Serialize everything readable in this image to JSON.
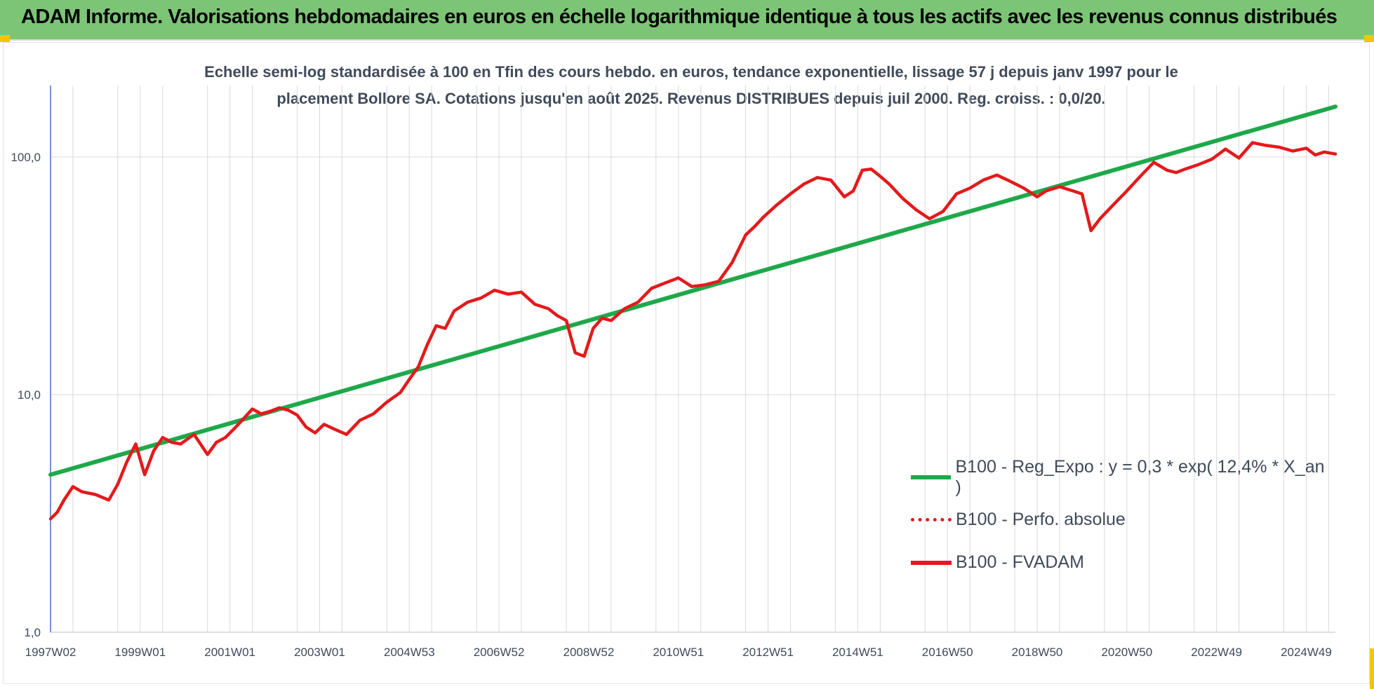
{
  "banner": {
    "title": "ADAM Informe. Valorisations hebdomadaires en euros en échelle logarithmique identique à tous les actifs avec les revenus connus distribués"
  },
  "colors": {
    "banner_bg": "#7cc576",
    "regression": "#1fa84a",
    "fvadam": "#e31a1c",
    "grid": "#d9d9d9",
    "text": "#404a5a",
    "corner": "#f5c400"
  },
  "chart_data": {
    "type": "line",
    "title_line1": "Echelle semi-log standardisée à 100 en Tfin des cours hebdo. en euros, tendance exponentielle, lissage 57 j depuis janv 1997 pour le",
    "title_line2": "placement Bollore SA. Cotations jusqu'en août 2025. Revenus DISTRIBUES depuis juil 2000. Reg. croiss. : 0,0/20.",
    "y_scale": "log",
    "ylim": [
      1,
      200
    ],
    "xlim": [
      1997.0,
      2025.65
    ],
    "grid": true,
    "legend_position": "right",
    "y_ticks": [
      {
        "value": 1,
        "label": "1,0"
      },
      {
        "value": 10,
        "label": "10,0"
      },
      {
        "value": 100,
        "label": "100,0"
      }
    ],
    "x_ticks": [
      {
        "value": 1997.0,
        "label": "1997W02"
      },
      {
        "value": 1999.0,
        "label": "1999W01"
      },
      {
        "value": 2001.0,
        "label": "2001W01"
      },
      {
        "value": 2003.0,
        "label": "2003W01"
      },
      {
        "value": 2005.0,
        "label": "2004W53"
      },
      {
        "value": 2007.0,
        "label": "2006W52"
      },
      {
        "value": 2009.0,
        "label": "2008W52"
      },
      {
        "value": 2011.0,
        "label": "2010W51"
      },
      {
        "value": 2013.0,
        "label": "2012W51"
      },
      {
        "value": 2015.0,
        "label": "2014W51"
      },
      {
        "value": 2017.0,
        "label": "2016W50"
      },
      {
        "value": 2019.0,
        "label": "2018W50"
      },
      {
        "value": 2021.0,
        "label": "2020W50"
      },
      {
        "value": 2023.0,
        "label": "2022W49"
      },
      {
        "value": 2025.0,
        "label": "2024W49"
      }
    ],
    "series": [
      {
        "name": "B100 - Reg_Expo : y = 0,3 * exp( 12,4% *  X_an )",
        "style": "solid-green",
        "x": [
          1997.0,
          2025.65
        ],
        "y": [
          4.6,
          163
        ]
      },
      {
        "name": "B100 - Perfo. absolue",
        "style": "dotted-red",
        "x": [],
        "y": []
      },
      {
        "name": "B100 - FVADAM",
        "style": "solid-red",
        "x": [
          1997.0,
          1997.15,
          1997.3,
          1997.5,
          1997.7,
          1998.0,
          1998.3,
          1998.5,
          1998.7,
          1998.9,
          1999.1,
          1999.3,
          1999.5,
          1999.7,
          1999.9,
          2000.2,
          2000.5,
          2000.7,
          2000.9,
          2001.1,
          2001.3,
          2001.5,
          2001.7,
          2001.9,
          2002.1,
          2002.3,
          2002.5,
          2002.7,
          2002.9,
          2003.1,
          2003.3,
          2003.6,
          2003.9,
          2004.2,
          2004.5,
          2004.8,
          2005.0,
          2005.2,
          2005.4,
          2005.6,
          2005.8,
          2006.0,
          2006.3,
          2006.6,
          2006.9,
          2007.2,
          2007.5,
          2007.8,
          2008.1,
          2008.3,
          2008.5,
          2008.7,
          2008.9,
          2009.1,
          2009.3,
          2009.5,
          2009.8,
          2010.1,
          2010.4,
          2010.7,
          2011.0,
          2011.3,
          2011.6,
          2011.9,
          2012.2,
          2012.5,
          2012.7,
          2012.9,
          2013.2,
          2013.5,
          2013.8,
          2014.1,
          2014.4,
          2014.7,
          2014.9,
          2015.1,
          2015.3,
          2015.5,
          2015.7,
          2016.0,
          2016.3,
          2016.6,
          2016.9,
          2017.2,
          2017.5,
          2017.8,
          2018.1,
          2018.4,
          2018.7,
          2019.0,
          2019.2,
          2019.5,
          2019.8,
          2020.0,
          2020.2,
          2020.4,
          2020.7,
          2021.0,
          2021.3,
          2021.6,
          2021.9,
          2022.1,
          2022.3,
          2022.6,
          2022.9,
          2023.2,
          2023.5,
          2023.8,
          2024.1,
          2024.4,
          2024.7,
          2025.0,
          2025.2,
          2025.4,
          2025.65
        ],
        "y": [
          3.0,
          3.2,
          3.6,
          4.1,
          3.9,
          3.8,
          3.6,
          4.2,
          5.2,
          6.2,
          4.6,
          5.8,
          6.6,
          6.3,
          6.2,
          6.8,
          5.6,
          6.3,
          6.6,
          7.2,
          7.9,
          8.7,
          8.3,
          8.5,
          8.8,
          8.6,
          8.2,
          7.3,
          6.9,
          7.5,
          7.2,
          6.8,
          7.8,
          8.3,
          9.3,
          10.2,
          11.6,
          13.1,
          16.2,
          19.5,
          19.0,
          22.5,
          24.5,
          25.5,
          27.5,
          26.5,
          27.0,
          24.0,
          23.0,
          21.5,
          20.5,
          15.0,
          14.5,
          19.0,
          21.0,
          20.5,
          23.0,
          24.5,
          28.0,
          29.5,
          31.0,
          28.5,
          29.0,
          30.0,
          36.0,
          47.0,
          51.0,
          56.0,
          63.0,
          70.0,
          77.0,
          82.0,
          80.0,
          68.0,
          72.0,
          88.0,
          89.0,
          83.0,
          77.0,
          67.0,
          60.0,
          55.0,
          59.0,
          70.0,
          74.0,
          80.0,
          84.0,
          79.0,
          74.0,
          68.0,
          72.0,
          75.0,
          72.0,
          70.0,
          49.0,
          55.0,
          63.0,
          72.0,
          83.0,
          95.0,
          88.0,
          86.0,
          89.0,
          93.0,
          98.0,
          108.0,
          99.0,
          115.0,
          112.0,
          110.0,
          106.0,
          109.0,
          102.0,
          105.0,
          103.0
        ]
      }
    ]
  }
}
